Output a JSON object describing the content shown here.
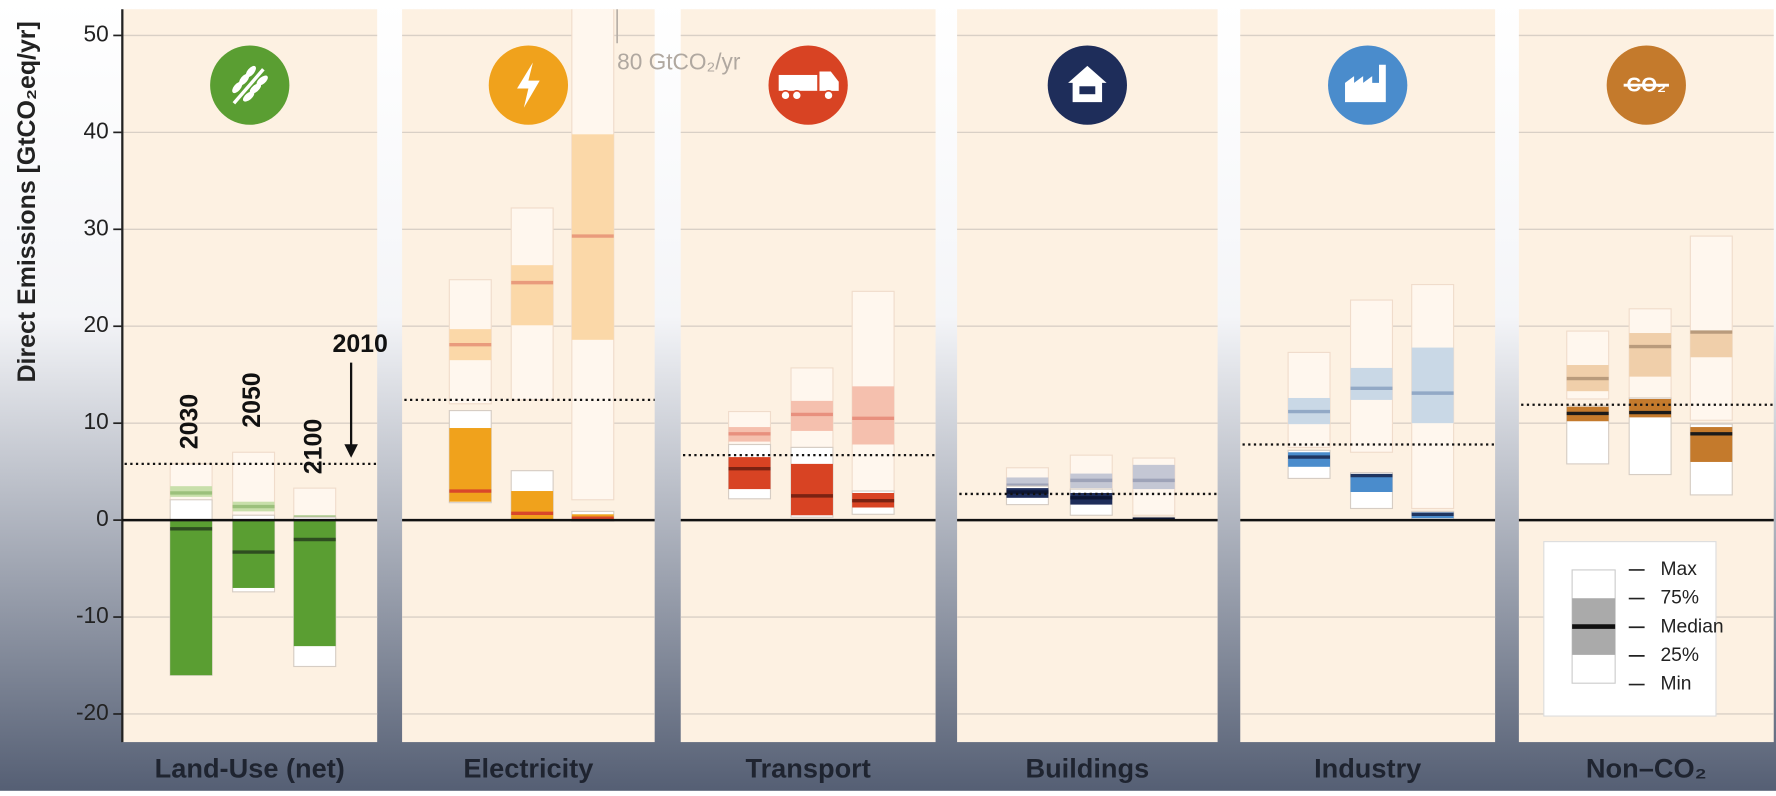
{
  "chart_data": {
    "type": "box",
    "ylabel": "Direct Emissions [GtCO₂eq/yr]",
    "ylim": [
      -22.9,
      52.7
    ],
    "yticks": [
      -20,
      -10,
      0,
      10,
      20,
      30,
      40,
      50
    ],
    "grid": true,
    "years": [
      "2030",
      "2050",
      "2100"
    ],
    "reference_year": "2010",
    "annotation": "80 GtCO₂/yr",
    "legend": [
      "Max",
      "75%",
      "Median",
      "25%",
      "Min"
    ],
    "sectors": [
      {
        "name": "Land-Use (net)",
        "color": "#5a9e32",
        "faint_color": "#c8dfaa",
        "median_color": "#2e4d20",
        "faint_median_color": "#9cc07c",
        "reference": 5.8,
        "faint": [
          {
            "min": 2.0,
            "q25": 2.4,
            "median": 2.8,
            "q75": 3.5,
            "max": 5.8
          },
          {
            "min": 0.5,
            "q25": 0.9,
            "median": 1.4,
            "q75": 1.9,
            "max": 7.0
          },
          {
            "min": -0.2,
            "q25": 0,
            "median": 0.3,
            "q75": 0.5,
            "max": 3.3
          }
        ],
        "full": [
          {
            "min": -16,
            "q25": -16,
            "median": -0.9,
            "q75": -0.1,
            "max": 2.1
          },
          {
            "min": -7.4,
            "q25": -7.0,
            "median": -3.3,
            "q75": 0,
            "max": 0.5
          },
          {
            "min": -15.1,
            "q25": -13,
            "median": -2.0,
            "q75": 0,
            "max": 0.3
          }
        ]
      },
      {
        "name": "Electricity",
        "color": "#f0a21c",
        "faint_color": "#fbd8a8",
        "median_color": "#d9472a",
        "faint_median_color": "#e99b7c",
        "reference": 12.4,
        "icon": "bolt",
        "faint": [
          {
            "min": 12.0,
            "q25": 16.5,
            "median": 18.1,
            "q75": 19.7,
            "max": 24.8
          },
          {
            "min": 12.4,
            "q25": 20.1,
            "median": 24.5,
            "q75": 26.3,
            "max": 32.2
          },
          {
            "min": 2.1,
            "q25": 18.6,
            "median": 29.3,
            "q75": 39.8,
            "max": 80
          }
        ],
        "full": [
          {
            "min": 1.8,
            "q25": 1.9,
            "median": 3.0,
            "q75": 9.5,
            "max": 11.3
          },
          {
            "min": 0,
            "q25": 0.1,
            "median": 0.7,
            "q75": 3.0,
            "max": 5.1
          },
          {
            "min": -0.1,
            "q25": 0,
            "median": 0.2,
            "q75": 0.6,
            "max": 0.9
          }
        ]
      },
      {
        "name": "Transport",
        "color": "#d84323",
        "faint_color": "#f5c0ae",
        "median_color": "#7a2212",
        "faint_median_color": "#e8907e",
        "reference": 6.7,
        "faint": [
          {
            "min": 7.0,
            "q25": 8.1,
            "median": 8.9,
            "q75": 9.6,
            "max": 11.2
          },
          {
            "min": 7.5,
            "q25": 9.2,
            "median": 10.9,
            "q75": 12.3,
            "max": 15.7
          },
          {
            "min": 3.0,
            "q25": 7.8,
            "median": 10.5,
            "q75": 13.8,
            "max": 23.6
          }
        ],
        "full": [
          {
            "min": 2.2,
            "q25": 3.2,
            "median": 5.3,
            "q75": 6.5,
            "max": 7.8
          },
          {
            "min": 0.3,
            "q25": 0.5,
            "median": 2.5,
            "q75": 5.8,
            "max": 7.5
          },
          {
            "min": 0.6,
            "q25": 1.3,
            "median": 2.0,
            "q75": 2.8,
            "max": 3.0
          }
        ]
      },
      {
        "name": "Buildings",
        "color": "#1e2d5a",
        "faint_color": "#c4c7d4",
        "median_color": "#0d1634",
        "faint_median_color": "#9ea3b8",
        "reference": 2.7,
        "faint": [
          {
            "min": 3.0,
            "q25": 3.3,
            "median": 3.6,
            "q75": 4.4,
            "max": 5.4
          },
          {
            "min": 3.0,
            "q25": 3.3,
            "median": 4.1,
            "q75": 4.8,
            "max": 6.7
          },
          {
            "min": 0.5,
            "q25": 3.2,
            "median": 4.1,
            "q75": 5.7,
            "max": 6.4
          }
        ],
        "full": [
          {
            "min": 1.6,
            "q25": 2.3,
            "median": 2.9,
            "q75": 3.3,
            "max": 3.5
          },
          {
            "min": 0.5,
            "q25": 1.6,
            "median": 2.3,
            "q75": 2.8,
            "max": 3.2
          },
          {
            "min": 0,
            "q25": 0,
            "median": 0.1,
            "q75": 0.2,
            "max": 0.3
          }
        ]
      },
      {
        "name": "Industry",
        "color": "#4a8ccc",
        "faint_color": "#c9d8e6",
        "median_color": "#1f3560",
        "faint_median_color": "#92a9c6",
        "reference": 7.8,
        "faint": [
          {
            "min": 7.5,
            "q25": 9.9,
            "median": 11.2,
            "q75": 12.6,
            "max": 17.3
          },
          {
            "min": 7.0,
            "q25": 12.4,
            "median": 13.6,
            "q75": 15.7,
            "max": 22.7
          },
          {
            "min": 1.2,
            "q25": 10.0,
            "median": 13.1,
            "q75": 17.8,
            "max": 24.3
          }
        ],
        "full": [
          {
            "min": 4.3,
            "q25": 5.5,
            "median": 6.5,
            "q75": 7.0,
            "max": 7.2
          },
          {
            "min": 1.2,
            "q25": 2.9,
            "median": 4.6,
            "q75": 4.7,
            "max": 4.9
          },
          {
            "min": 0.1,
            "q25": 0.2,
            "median": 0.6,
            "q75": 0.8,
            "max": 0.9
          }
        ]
      },
      {
        "name": "Non–CO₂",
        "icon_label": "CO₂",
        "color": "#c47a2c",
        "faint_color": "#f0cfaa",
        "median_color": "#1a1a1a",
        "faint_median_color": "#b99b7c",
        "reference": 11.9,
        "faint": [
          {
            "min": 12.5,
            "q25": 13.3,
            "median": 14.6,
            "q75": 16.0,
            "max": 19.5
          },
          {
            "min": 12.5,
            "q25": 14.8,
            "median": 17.9,
            "q75": 19.3,
            "max": 21.8
          },
          {
            "min": 10.3,
            "q25": 16.8,
            "median": 19.4,
            "q75": 19.5,
            "max": 29.3
          }
        ],
        "full": [
          {
            "min": 5.8,
            "q25": 10.2,
            "median": 11.0,
            "q75": 11.7,
            "max": 11.8
          },
          {
            "min": 4.7,
            "q25": 10.6,
            "median": 11.1,
            "q75": 12.5,
            "max": 12.6
          },
          {
            "min": 2.6,
            "q25": 6.0,
            "median": 8.9,
            "q75": 9.6,
            "max": 9.9
          }
        ]
      }
    ]
  }
}
